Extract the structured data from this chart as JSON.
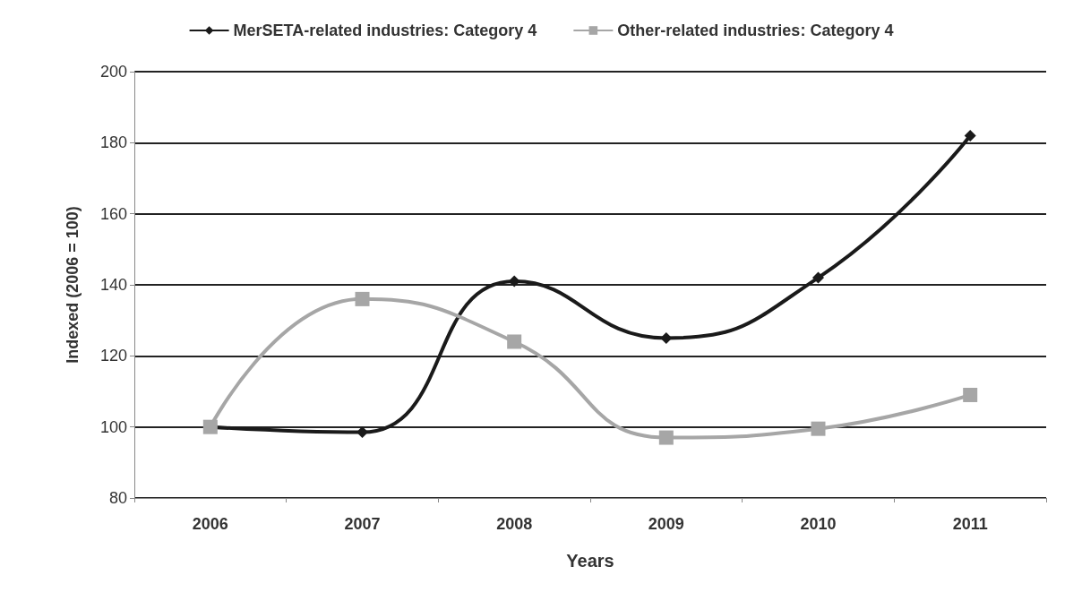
{
  "chart_data": {
    "type": "line",
    "xlabel": "Years",
    "ylabel": "Indexed (2006 = 100)",
    "categories": [
      "2006",
      "2007",
      "2008",
      "2009",
      "2010",
      "2011"
    ],
    "series": [
      {
        "name": "MerSETA-related industries: Category 4",
        "color": "#1a1a1a",
        "marker": "diamond",
        "values": [
          100,
          98.5,
          141,
          125,
          142,
          182
        ]
      },
      {
        "name": "Other-related industries: Category 4",
        "color": "#a6a6a6",
        "marker": "square",
        "values": [
          100,
          136,
          124,
          97,
          99.5,
          109
        ]
      }
    ],
    "ylim": [
      80,
      200
    ],
    "yticks": [
      80,
      100,
      120,
      140,
      160,
      180,
      200
    ],
    "grid": "y",
    "legend": "top",
    "line_style": "solid"
  }
}
